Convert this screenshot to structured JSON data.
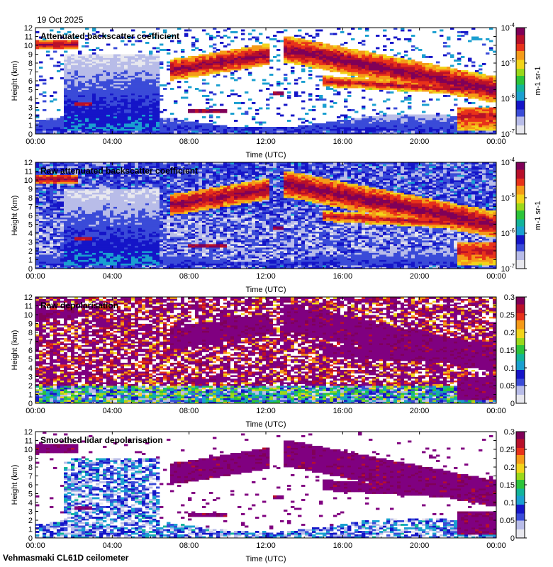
{
  "date": "19 Oct 2025",
  "footer": "Vehmasmaki CL61D ceilometer",
  "colors": {
    "background": "#ffffff",
    "cloud": "#800080",
    "colormap": [
      "#e8e8ee",
      "#b8bce8",
      "#3a4bd8",
      "#1515c8",
      "#1a9fd0",
      "#12b49a",
      "#2cc43a",
      "#9ad81a",
      "#f2d41a",
      "#f59a18",
      "#e8321a",
      "#b8102a",
      "#800058"
    ]
  },
  "chart_data": [
    {
      "type": "heatmap",
      "title": "Attenuated backscatter coefficient",
      "xlabel": "Time (UTC)",
      "ylabel": "Height (km)",
      "x_ticks": [
        "00:00",
        "04:00",
        "08:00",
        "12:00",
        "16:00",
        "20:00",
        "00:00"
      ],
      "y_ticks": [
        "0",
        "1",
        "2",
        "3",
        "4",
        "5",
        "6",
        "7",
        "8",
        "9",
        "10",
        "11",
        "12"
      ],
      "ylim": [
        0,
        12
      ],
      "scale": "log",
      "colorbar_unit": "m-1 sr-1",
      "colorbar_ticks": [
        {
          "label": "10",
          "exp": "-7",
          "frac": 0
        },
        {
          "label": "10",
          "exp": "-6",
          "frac": 0.3333
        },
        {
          "label": "10",
          "exp": "-5",
          "frac": 0.6667
        },
        {
          "label": "10",
          "exp": "-4",
          "frac": 1
        }
      ],
      "masked": true
    },
    {
      "type": "heatmap",
      "title": "Raw attenuated backscatter coefficient",
      "xlabel": "Time (UTC)",
      "ylabel": "Height (km)",
      "x_ticks": [
        "00:00",
        "04:00",
        "08:00",
        "12:00",
        "16:00",
        "20:00",
        "00:00"
      ],
      "y_ticks": [
        "0",
        "1",
        "2",
        "3",
        "4",
        "5",
        "6",
        "7",
        "8",
        "9",
        "10",
        "11",
        "12"
      ],
      "ylim": [
        0,
        12
      ],
      "scale": "log",
      "colorbar_unit": "m-1 sr-1",
      "colorbar_ticks": [
        {
          "label": "10",
          "exp": "-7",
          "frac": 0
        },
        {
          "label": "10",
          "exp": "-6",
          "frac": 0.3333
        },
        {
          "label": "10",
          "exp": "-5",
          "frac": 0.6667
        },
        {
          "label": "10",
          "exp": "-4",
          "frac": 1
        }
      ],
      "masked": false
    },
    {
      "type": "heatmap",
      "title": "Raw depolarisation",
      "xlabel": "Time (UTC)",
      "ylabel": "Height (km)",
      "x_ticks": [
        "00:00",
        "04:00",
        "08:00",
        "12:00",
        "16:00",
        "20:00",
        "00:00"
      ],
      "y_ticks": [
        "0",
        "1",
        "2",
        "3",
        "4",
        "5",
        "6",
        "7",
        "8",
        "9",
        "10",
        "11",
        "12"
      ],
      "ylim": [
        0,
        12
      ],
      "scale": "linear",
      "colorbar_unit": "",
      "colorbar_ticks": [
        {
          "label": "0",
          "exp": "",
          "frac": 0
        },
        {
          "label": "0.05",
          "exp": "",
          "frac": 0.1667
        },
        {
          "label": "0.1",
          "exp": "",
          "frac": 0.3333
        },
        {
          "label": "0.15",
          "exp": "",
          "frac": 0.5
        },
        {
          "label": "0.2",
          "exp": "",
          "frac": 0.6667
        },
        {
          "label": "0.25",
          "exp": "",
          "frac": 0.8333
        },
        {
          "label": "0.3",
          "exp": "",
          "frac": 1
        }
      ],
      "masked": false
    },
    {
      "type": "heatmap",
      "title": "Smoothed lidar depolarisation",
      "xlabel": "Time (UTC)",
      "ylabel": "Height (km)",
      "x_ticks": [
        "00:00",
        "04:00",
        "08:00",
        "12:00",
        "16:00",
        "20:00",
        "00:00"
      ],
      "y_ticks": [
        "0",
        "1",
        "2",
        "3",
        "4",
        "5",
        "6",
        "7",
        "8",
        "9",
        "10",
        "11",
        "12"
      ],
      "ylim": [
        0,
        12
      ],
      "scale": "linear",
      "colorbar_unit": "",
      "colorbar_ticks": [
        {
          "label": "0",
          "exp": "",
          "frac": 0
        },
        {
          "label": "0.05",
          "exp": "",
          "frac": 0.1667
        },
        {
          "label": "0.1",
          "exp": "",
          "frac": 0.3333
        },
        {
          "label": "0.15",
          "exp": "",
          "frac": 0.5
        },
        {
          "label": "0.2",
          "exp": "",
          "frac": 0.6667
        },
        {
          "label": "0.25",
          "exp": "",
          "frac": 0.8333
        },
        {
          "label": "0.3",
          "exp": "",
          "frac": 1
        }
      ],
      "masked": true
    }
  ]
}
